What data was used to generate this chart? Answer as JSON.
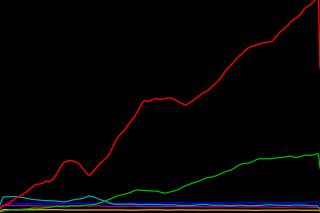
{
  "background_color": "#000000",
  "plot_bg_color": "#000000",
  "figsize": [
    3.2,
    2.13
  ],
  "dpi": 100,
  "series": {
    "Firefox": {
      "color": "#ff0000"
    },
    "Safari": {
      "color": "#00bb00"
    },
    "Opera": {
      "color": "#00aaaa"
    },
    "Netscape": {
      "color": "#0000ff"
    },
    "Mozilla": {
      "color": "#aa00aa"
    },
    "Other": {
      "color": "#ffaa00"
    }
  },
  "ylim": [
    0,
    0.85
  ],
  "n_points": 200
}
